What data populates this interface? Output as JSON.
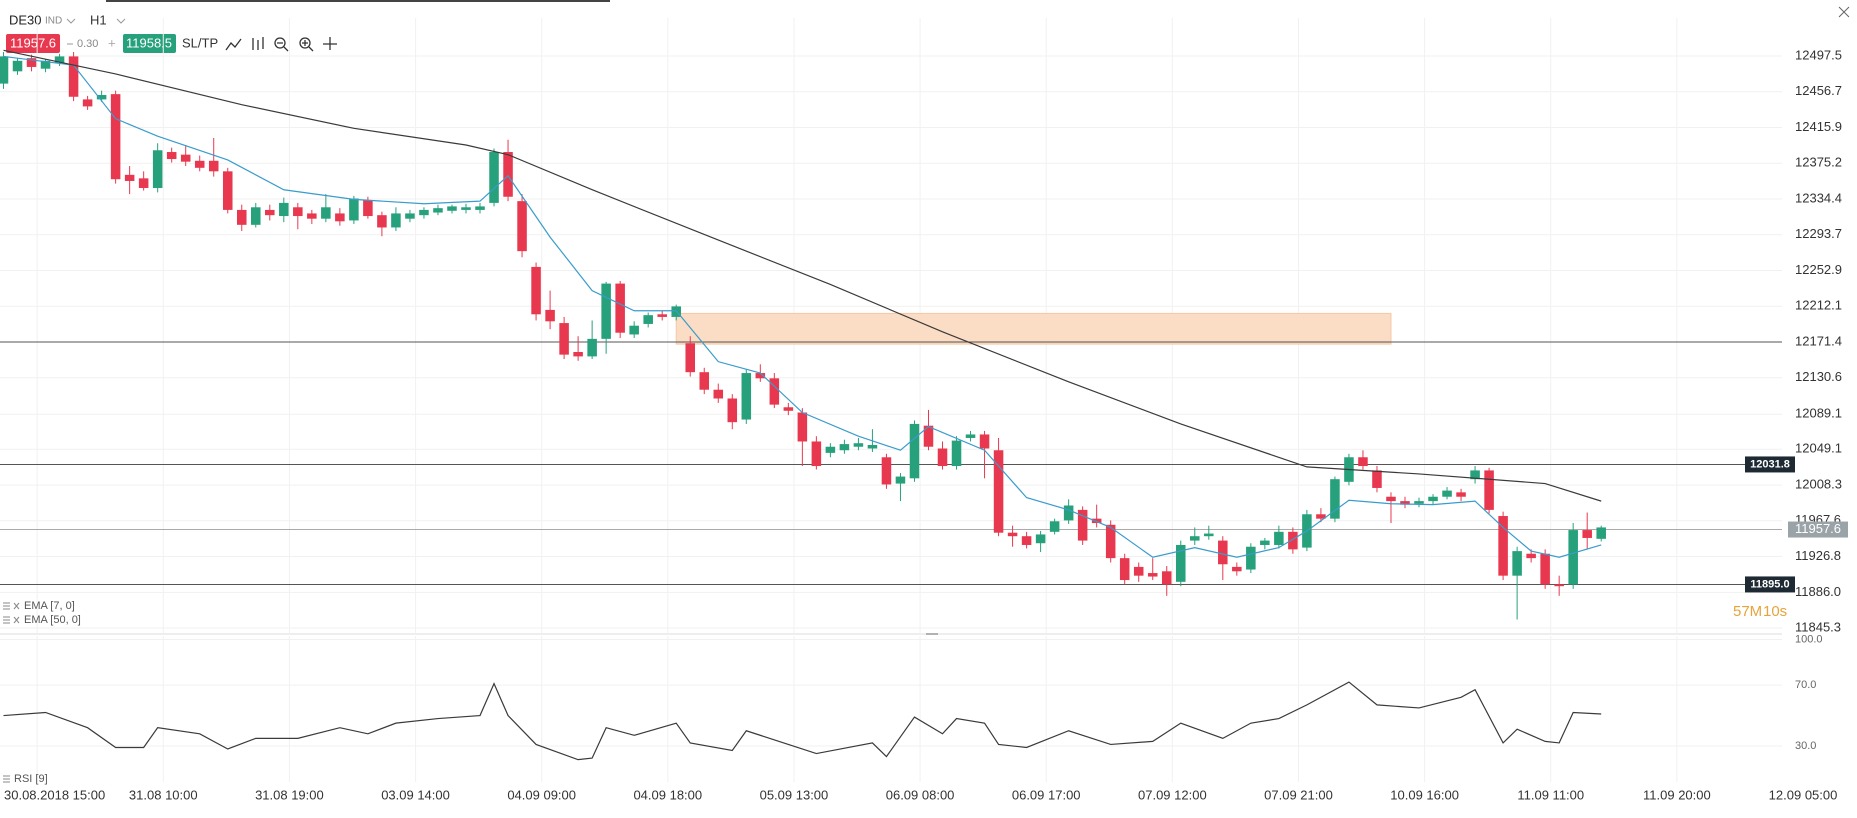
{
  "header": {
    "symbol": "DE30",
    "market": "IND",
    "timeframe": "H1",
    "bid": "11957.6",
    "spread": "0.30",
    "ask": "11958.5",
    "sltp": "SL/TP"
  },
  "chart_data": [
    {
      "type": "candlestick",
      "up_color": "#26a17b",
      "down_color": "#e8384f",
      "grid": true,
      "ylim": [
        11838.5,
        12540.8
      ],
      "yticks": [
        12497.5,
        12456.7,
        12415.9,
        12375.2,
        12334.4,
        12293.7,
        12252.9,
        12212.1,
        12171.4,
        12130.6,
        12089.1,
        12049.1,
        12008.3,
        11967.6,
        11926.8,
        {
          "value": 11886,
          "label": "11886.0"
        },
        11845.3
      ],
      "xlim": [
        -0.25,
        126.9
      ],
      "xticks": [
        {
          "value": 2.4,
          "label": "30.08.2018 15:00"
        },
        {
          "value": 11.4,
          "label": "31.08 10:00"
        },
        {
          "value": 20.4,
          "label": "31.08 19:00"
        },
        {
          "value": 29.4,
          "label": "03.09 14:00"
        },
        {
          "value": 38.4,
          "label": "04.09 09:00"
        },
        {
          "value": 47.4,
          "label": "04.09 18:00"
        },
        {
          "value": 56.4,
          "label": "05.09 13:00"
        },
        {
          "value": 65.4,
          "label": "06.09 08:00"
        },
        {
          "value": 74.4,
          "label": "06.09 17:00"
        },
        {
          "value": 83.4,
          "label": "07.09 12:00"
        },
        {
          "value": 92.4,
          "label": "07.09 21:00"
        },
        {
          "value": 101.4,
          "label": "10.09 16:00"
        },
        {
          "value": 110.4,
          "label": "11.09 11:00"
        },
        {
          "value": 119.4,
          "label": "11.09 20:00"
        },
        {
          "value": 128.4,
          "label": "12.09 05:00"
        }
      ],
      "candles": [
        [
          12466,
          12502,
          12460,
          12497
        ],
        [
          12480,
          12495,
          12476,
          12492
        ],
        [
          12495,
          12499,
          12480,
          12485
        ],
        [
          12483,
          12494,
          12479,
          12492
        ],
        [
          12490,
          12500,
          12486,
          12497
        ],
        [
          12497,
          12502,
          12446,
          12451
        ],
        [
          12448,
          12452,
          12436,
          12440
        ],
        [
          12448,
          12458,
          12445,
          12453
        ],
        [
          12454,
          12458,
          12352,
          12357
        ],
        [
          12362,
          12372,
          12340,
          12355
        ],
        [
          12358,
          12366,
          12344,
          12347
        ],
        [
          12347,
          12398,
          12342,
          12390
        ],
        [
          12388,
          12393,
          12376,
          12380
        ],
        [
          12385,
          12396,
          12372,
          12377
        ],
        [
          12378,
          12384,
          12366,
          12370
        ],
        [
          12378,
          12404,
          12360,
          12366
        ],
        [
          12366,
          12370,
          12318,
          12322
        ],
        [
          12322,
          12328,
          12298,
          12305
        ],
        [
          12305,
          12330,
          12302,
          12325
        ],
        [
          12322,
          12328,
          12310,
          12316
        ],
        [
          12315,
          12336,
          12308,
          12330
        ],
        [
          12325,
          12330,
          12300,
          12315
        ],
        [
          12318,
          12322,
          12306,
          12312
        ],
        [
          12312,
          12340,
          12308,
          12325
        ],
        [
          12318,
          12324,
          12304,
          12309
        ],
        [
          12310,
          12338,
          12306,
          12335
        ],
        [
          12333,
          12337,
          12312,
          12315
        ],
        [
          12316,
          12320,
          12292,
          12302
        ],
        [
          12302,
          12325,
          12298,
          12318
        ],
        [
          12312,
          12322,
          12308,
          12318
        ],
        [
          12316,
          12325,
          12312,
          12322
        ],
        [
          12319,
          12328,
          12316,
          12324
        ],
        [
          12321,
          12328,
          12318,
          12326
        ],
        [
          12322,
          12329,
          12318,
          12325
        ],
        [
          12322,
          12330,
          12318,
          12326
        ],
        [
          12330,
          12392,
          12326,
          12388
        ],
        [
          12388,
          12402,
          12332,
          12337
        ],
        [
          12332,
          12340,
          12268,
          12275
        ],
        [
          12257,
          12262,
          12196,
          12203
        ],
        [
          12208,
          12230,
          12186,
          12195
        ],
        [
          12193,
          12200,
          12152,
          12157
        ],
        [
          12160,
          12178,
          12150,
          12155
        ],
        [
          12155,
          12196,
          12152,
          12175
        ],
        [
          12175,
          12240,
          12158,
          12238
        ],
        [
          12238,
          12241,
          12176,
          12182
        ],
        [
          12180,
          12195,
          12176,
          12190
        ],
        [
          12192,
          12205,
          12188,
          12202
        ],
        [
          12203,
          12207,
          12196,
          12200
        ],
        [
          12200,
          12214,
          12196,
          12212
        ],
        [
          12170,
          12178,
          12132,
          12137
        ],
        [
          12137,
          12142,
          12112,
          12117
        ],
        [
          12117,
          12124,
          12102,
          12107
        ],
        [
          12107,
          12112,
          12072,
          12080
        ],
        [
          12083,
          12140,
          12078,
          12136
        ],
        [
          12136,
          12146,
          12126,
          12130
        ],
        [
          12130,
          12136,
          12096,
          12100
        ],
        [
          12097,
          12102,
          12088,
          12093
        ],
        [
          12091,
          12096,
          12030,
          12058
        ],
        [
          12058,
          12064,
          12026,
          12030
        ],
        [
          12045,
          12056,
          12040,
          12052
        ],
        [
          12048,
          12060,
          12044,
          12055
        ],
        [
          12052,
          12062,
          12048,
          12056
        ],
        [
          12050,
          12072,
          12046,
          12054
        ],
        [
          12040,
          12044,
          12004,
          12009
        ],
        [
          12010,
          12022,
          11990,
          12018
        ],
        [
          12016,
          12082,
          12012,
          12078
        ],
        [
          12076,
          12094,
          12048,
          12052
        ],
        [
          12050,
          12058,
          12026,
          12030
        ],
        [
          12030,
          12064,
          12026,
          12059
        ],
        [
          12062,
          12070,
          12058,
          12066
        ],
        [
          12066,
          12070,
          12016,
          12050
        ],
        [
          12048,
          12062,
          11950,
          11954
        ],
        [
          11954,
          11962,
          11938,
          11950
        ],
        [
          11950,
          11955,
          11936,
          11940
        ],
        [
          11942,
          11956,
          11932,
          11952
        ],
        [
          11955,
          11970,
          11952,
          11967
        ],
        [
          11968,
          11992,
          11964,
          11985
        ],
        [
          11980,
          11984,
          11940,
          11945
        ],
        [
          11970,
          11986,
          11960,
          11965
        ],
        [
          11963,
          11968,
          11920,
          11925
        ],
        [
          11925,
          11930,
          11895,
          11900
        ],
        [
          11915,
          11920,
          11898,
          11905
        ],
        [
          11908,
          11925,
          11900,
          11904
        ],
        [
          11910,
          11916,
          11882,
          11895
        ],
        [
          11898,
          11945,
          11893,
          11940
        ],
        [
          11945,
          11960,
          11940,
          11950
        ],
        [
          11950,
          11962,
          11946,
          11953
        ],
        [
          11945,
          11950,
          11900,
          11918
        ],
        [
          11915,
          11920,
          11905,
          11910
        ],
        [
          11912,
          11942,
          11908,
          11938
        ],
        [
          11940,
          11948,
          11935,
          11945
        ],
        [
          11940,
          11962,
          11936,
          11955
        ],
        [
          11955,
          11960,
          11930,
          11935
        ],
        [
          11937,
          11980,
          11933,
          11975
        ],
        [
          11975,
          11982,
          11966,
          11970
        ],
        [
          11970,
          12018,
          11966,
          12015
        ],
        [
          12012,
          12044,
          12008,
          12040
        ],
        [
          12040,
          12048,
          12026,
          12030
        ],
        [
          12025,
          12030,
          12000,
          12005
        ],
        [
          11995,
          12000,
          11965,
          11990
        ],
        [
          11990,
          11995,
          11982,
          11986
        ],
        [
          11987,
          11994,
          11983,
          11990
        ],
        [
          11990,
          11998,
          11986,
          11995
        ],
        [
          11995,
          12006,
          11992,
          12002
        ],
        [
          12000,
          12004,
          11990,
          11995
        ],
        [
          12015,
          12030,
          12010,
          12025
        ],
        [
          12025,
          12028,
          11976,
          11980
        ],
        [
          11973,
          11978,
          11900,
          11905
        ],
        [
          11905,
          11938,
          11855,
          11933
        ],
        [
          11930,
          11935,
          11920,
          11925
        ],
        [
          11930,
          11935,
          11890,
          11895
        ],
        [
          11895,
          11905,
          11882,
          11893
        ],
        [
          11895,
          11965,
          11890,
          11957
        ],
        [
          11957,
          11977,
          11936,
          11948
        ],
        [
          11947,
          11962,
          11944,
          11960
        ]
      ],
      "series": [
        {
          "name": "EMA [7, 0]",
          "color": "#3a9ccc",
          "x": [
            0,
            5,
            8,
            11,
            16,
            20,
            25,
            30,
            34,
            36,
            39,
            42,
            45,
            48,
            51,
            54,
            57,
            61,
            64,
            66,
            70,
            73,
            76,
            79,
            82,
            85,
            88,
            91,
            93,
            96,
            99,
            102,
            105,
            107,
            109,
            111,
            114
          ],
          "values": [
            12497,
            12487,
            12426,
            12406,
            12379,
            12345,
            12334,
            12329,
            12332,
            12361,
            12291,
            12230,
            12207,
            12207,
            12149,
            12136,
            12091,
            12064,
            12048,
            12075,
            12048,
            11994,
            11980,
            11960,
            11926,
            11937,
            11926,
            11937,
            11956,
            11991,
            11987,
            11986,
            11990,
            11960,
            11933,
            11926,
            11940
          ]
        },
        {
          "name": "EMA [50, 0]",
          "color": "#3a3a3a",
          "x": [
            0,
            8,
            17,
            25,
            33,
            36,
            42,
            50,
            59,
            67,
            76,
            84,
            93,
            101,
            110,
            114
          ],
          "values": [
            12504,
            12477,
            12442,
            12415,
            12396,
            12385,
            12345,
            12294,
            12237,
            12183,
            12126,
            12078,
            12029,
            12021,
            12010,
            11990
          ]
        }
      ],
      "price_lines": [
        {
          "value": 12171.4,
          "color": "#555555"
        },
        {
          "value": 12031.8,
          "color": "#555555",
          "tag_color": "#1e2a33"
        },
        {
          "value": 11957.6,
          "color": "#aaaaaa",
          "tag_color": "#9aa3a8"
        },
        {
          "value": 11895,
          "label": "11895.0",
          "color": "#555555",
          "tag_color": "#1e2a33"
        }
      ],
      "zone": {
        "x": [
          48,
          99
        ],
        "y": [
          12169,
          12204
        ],
        "color": "#fbdcc4"
      },
      "countdown": [
        "57M",
        "10s"
      ]
    },
    {
      "type": "line",
      "grid": true,
      "ylim": [
        6.3,
        102.3
      ],
      "xlim": [
        -0.25,
        126.9
      ],
      "yticks": [
        {
          "value": 100,
          "label": "100.0"
        },
        {
          "value": 70,
          "label": "70.0"
        },
        {
          "value": 30,
          "label": "30.0"
        }
      ],
      "series": [
        {
          "name": "RSI [9]",
          "color": "#3a3a3a",
          "x": [
            0,
            3,
            6,
            8,
            10,
            11,
            14,
            16,
            18,
            21,
            24,
            26,
            28,
            31,
            34,
            35,
            36,
            38,
            41,
            42,
            43,
            45,
            48,
            49,
            52,
            53,
            56,
            58,
            62,
            63,
            65,
            67,
            68,
            70,
            71,
            73,
            76,
            79,
            82,
            84,
            87,
            89,
            91,
            93,
            96,
            98,
            101,
            104,
            105,
            107,
            108,
            110,
            111,
            112,
            114
          ],
          "values": [
            50,
            52,
            42,
            29,
            29,
            42,
            38,
            28,
            35,
            35,
            42,
            38,
            45,
            48,
            50,
            71,
            50,
            31,
            21,
            22,
            42,
            37,
            45,
            32,
            27,
            40,
            31,
            25,
            32,
            23,
            49,
            38,
            48,
            45,
            31,
            29,
            40,
            31,
            33,
            45,
            35,
            45,
            48,
            57,
            72,
            57,
            55,
            62,
            67,
            32,
            41,
            33,
            32,
            52,
            51
          ]
        }
      ]
    }
  ]
}
